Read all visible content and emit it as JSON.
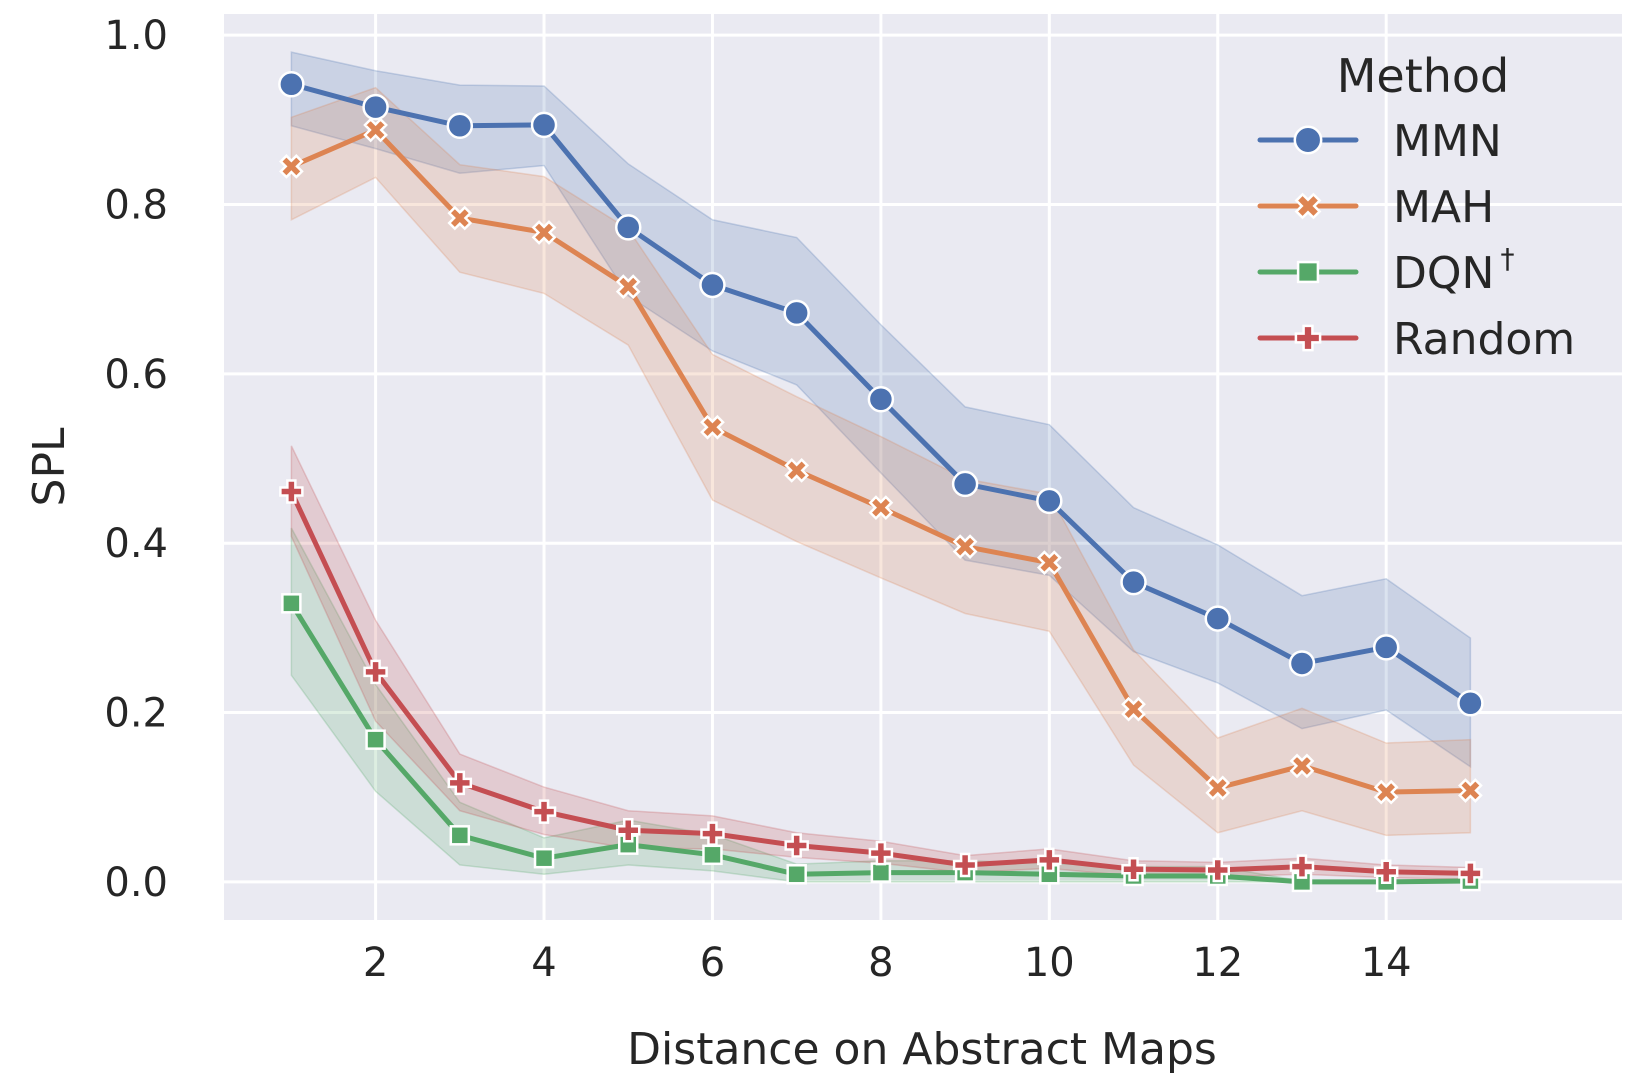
{
  "chart_data": {
    "type": "line",
    "title": "",
    "xlabel": "Distance on Abstract Maps",
    "ylabel": "SPL",
    "xlim": [
      0.2,
      16.8
    ],
    "ylim": [
      -0.045,
      1.025
    ],
    "xticks": [
      2,
      4,
      6,
      8,
      10,
      12,
      14
    ],
    "yticks": [
      0.0,
      0.2,
      0.4,
      0.6,
      0.8,
      1.0
    ],
    "xtick_labels": [
      "2",
      "4",
      "6",
      "8",
      "10",
      "12",
      "14"
    ],
    "ytick_labels": [
      "0.0",
      "0.2",
      "0.4",
      "0.6",
      "0.8",
      "1.0"
    ],
    "grid": true,
    "legend": {
      "title": "Method",
      "placement": "top-right",
      "entries": [
        {
          "label": "MMN",
          "sup": ""
        },
        {
          "label": "MAH",
          "sup": ""
        },
        {
          "label": "DQN",
          "sup": "†"
        },
        {
          "label": "Random",
          "sup": ""
        }
      ]
    },
    "x": [
      1,
      2,
      3,
      4,
      5,
      6,
      7,
      8,
      9,
      10,
      11,
      12,
      13,
      14,
      15
    ],
    "series": [
      {
        "name": "MMN",
        "color": "#4c72b0",
        "marker": "circle",
        "values": [
          0.942,
          0.915,
          0.893,
          0.894,
          0.773,
          0.705,
          0.672,
          0.57,
          0.47,
          0.45,
          0.354,
          0.311,
          0.258,
          0.277,
          0.211
        ],
        "ci_low": [
          0.893,
          0.866,
          0.837,
          0.846,
          0.692,
          0.627,
          0.587,
          0.483,
          0.38,
          0.362,
          0.272,
          0.235,
          0.181,
          0.203,
          0.136
        ],
        "ci_high": [
          0.98,
          0.958,
          0.941,
          0.94,
          0.848,
          0.782,
          0.761,
          0.658,
          0.561,
          0.54,
          0.442,
          0.398,
          0.338,
          0.358,
          0.288
        ]
      },
      {
        "name": "MAH",
        "color": "#dd8452",
        "marker": "x",
        "values": [
          0.845,
          0.888,
          0.784,
          0.767,
          0.703,
          0.537,
          0.486,
          0.442,
          0.396,
          0.377,
          0.204,
          0.111,
          0.137,
          0.106,
          0.108
        ],
        "ci_low": [
          0.782,
          0.832,
          0.72,
          0.695,
          0.634,
          0.451,
          0.402,
          0.359,
          0.317,
          0.296,
          0.138,
          0.058,
          0.084,
          0.055,
          0.058
        ],
        "ci_high": [
          0.903,
          0.938,
          0.847,
          0.833,
          0.771,
          0.623,
          0.573,
          0.526,
          0.476,
          0.458,
          0.274,
          0.17,
          0.205,
          0.164,
          0.168
        ]
      },
      {
        "name": "DQN†",
        "color": "#55a868",
        "marker": "square",
        "values": [
          0.329,
          0.168,
          0.055,
          0.028,
          0.044,
          0.032,
          0.009,
          0.011,
          0.011,
          0.009,
          0.007,
          0.007,
          0.0,
          0.0,
          0.001
        ],
        "ci_low": [
          0.244,
          0.107,
          0.02,
          0.009,
          0.02,
          0.013,
          0.0,
          0.0,
          0.0,
          0.0,
          0.0,
          0.0,
          0.0,
          0.0,
          0.0
        ],
        "ci_high": [
          0.418,
          0.233,
          0.094,
          0.052,
          0.073,
          0.056,
          0.021,
          0.025,
          0.025,
          0.022,
          0.018,
          0.018,
          0.001,
          0.001,
          0.004
        ]
      },
      {
        "name": "Random",
        "color": "#c44e52",
        "marker": "plus",
        "values": [
          0.461,
          0.248,
          0.117,
          0.083,
          0.061,
          0.057,
          0.043,
          0.034,
          0.02,
          0.026,
          0.015,
          0.014,
          0.018,
          0.012,
          0.01
        ],
        "ci_low": [
          0.408,
          0.19,
          0.084,
          0.056,
          0.04,
          0.039,
          0.029,
          0.022,
          0.011,
          0.016,
          0.007,
          0.006,
          0.009,
          0.005,
          0.003
        ],
        "ci_high": [
          0.515,
          0.309,
          0.151,
          0.112,
          0.084,
          0.078,
          0.058,
          0.048,
          0.031,
          0.039,
          0.025,
          0.023,
          0.028,
          0.02,
          0.017
        ]
      }
    ]
  }
}
